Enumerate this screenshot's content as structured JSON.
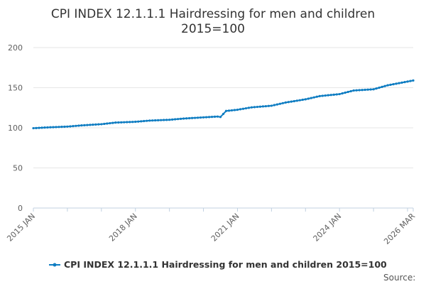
{
  "chart_data": {
    "type": "line",
    "title_lines": [
      "CPI INDEX 12.1.1.1 Hairdressing for men and children",
      "2015=100"
    ],
    "xlabel": "",
    "ylabel": "",
    "ylim": [
      0,
      200
    ],
    "yticks": [
      0,
      50,
      100,
      150,
      200
    ],
    "x_start": "2015-01",
    "x_end": "2026-03",
    "xticks": [
      {
        "label": "2015 JAN",
        "date": "2015-01"
      },
      {
        "label": "2018 JAN",
        "date": "2018-01"
      },
      {
        "label": "2021 JAN",
        "date": "2021-01"
      },
      {
        "label": "2024 JAN",
        "date": "2024-01"
      },
      {
        "label": "2026 MAR",
        "date": "2026-03"
      }
    ],
    "grid": true,
    "legend_position": "bottom",
    "series": [
      {
        "name": "CPI INDEX 12.1.1.1 Hairdressing for men and children 2015=100",
        "color": "#0f7dc2",
        "x": [
          "2015-01",
          "2015-06",
          "2016-01",
          "2016-06",
          "2017-01",
          "2017-06",
          "2018-01",
          "2018-06",
          "2019-01",
          "2019-06",
          "2020-01",
          "2020-06",
          "2020-07",
          "2020-09",
          "2021-01",
          "2021-06",
          "2022-01",
          "2022-06",
          "2023-01",
          "2023-06",
          "2024-01",
          "2024-06",
          "2025-01",
          "2025-06",
          "2026-03"
        ],
        "values": [
          99.5,
          100.5,
          101.5,
          103.0,
          104.5,
          106.5,
          107.5,
          109.0,
          110.0,
          111.5,
          113.0,
          114.0,
          113.5,
          121.0,
          122.5,
          125.5,
          127.5,
          131.5,
          135.5,
          139.5,
          142.0,
          146.5,
          148.0,
          153.0,
          159.0
        ]
      }
    ],
    "source_label": "Source:"
  }
}
